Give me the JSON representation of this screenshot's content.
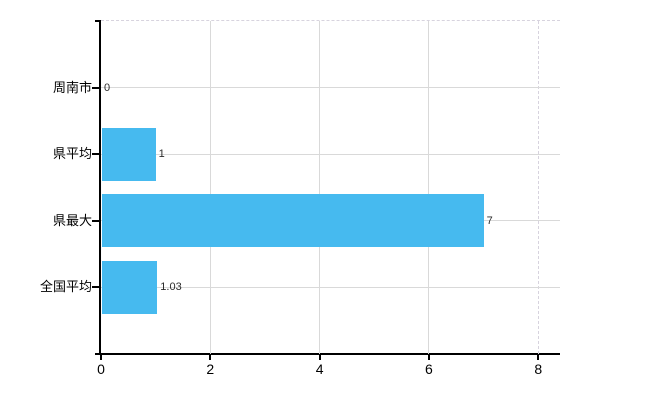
{
  "chart_data": {
    "type": "bar",
    "orientation": "horizontal",
    "title": "",
    "categories": [
      "周南市",
      "県平均",
      "県最大",
      "全国平均"
    ],
    "values": [
      0,
      1,
      7,
      1.03
    ],
    "value_labels": [
      "0",
      "1",
      "7",
      "1.03"
    ],
    "x_ticks": [
      "0",
      "2",
      "4",
      "6",
      "8"
    ],
    "x_tick_values": [
      0,
      2,
      4,
      6,
      8
    ],
    "xlim": [
      0,
      8.4
    ],
    "ylabel": "",
    "xlabel": "",
    "legend": "none",
    "grid": "on",
    "colors": {
      "bar": "#46baef",
      "grid": "#d9d9d9",
      "dashed_border": "#d7d3de",
      "axis": "#000000",
      "category_text": "#000000",
      "tick_text": "#000000",
      "value_text": "#2b2b2b",
      "background": "#ffffff"
    }
  }
}
